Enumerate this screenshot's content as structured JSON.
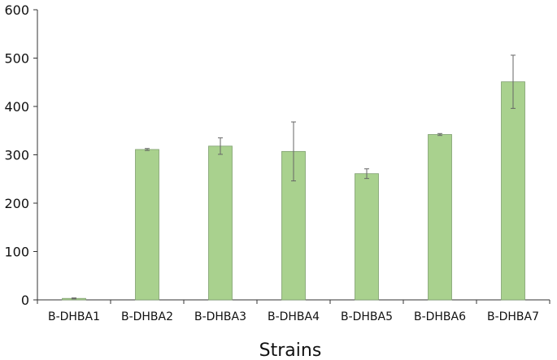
{
  "chart_data": {
    "type": "bar",
    "title": "",
    "xlabel": "Strains",
    "ylabel": "",
    "ylim": [
      0,
      600
    ],
    "yticks": [
      0,
      100,
      200,
      300,
      400,
      500,
      600
    ],
    "yticks_labels": [
      "0",
      "100",
      "200",
      "300",
      "400",
      "500",
      "600"
    ],
    "grid": false,
    "legend": "none",
    "bar_color": "#a9d18e",
    "bar_edge_color": "#7f9f70",
    "categories": [
      "B-DHBA1",
      "B-DHBA2",
      "B-DHBA3",
      "B-DHBA4",
      "B-DHBA5",
      "B-DHBA6",
      "B-DHBA7"
    ],
    "values": [
      3,
      311,
      318,
      307,
      261,
      342,
      451
    ],
    "errors": [
      1,
      2,
      17,
      61,
      10,
      2,
      55
    ]
  }
}
